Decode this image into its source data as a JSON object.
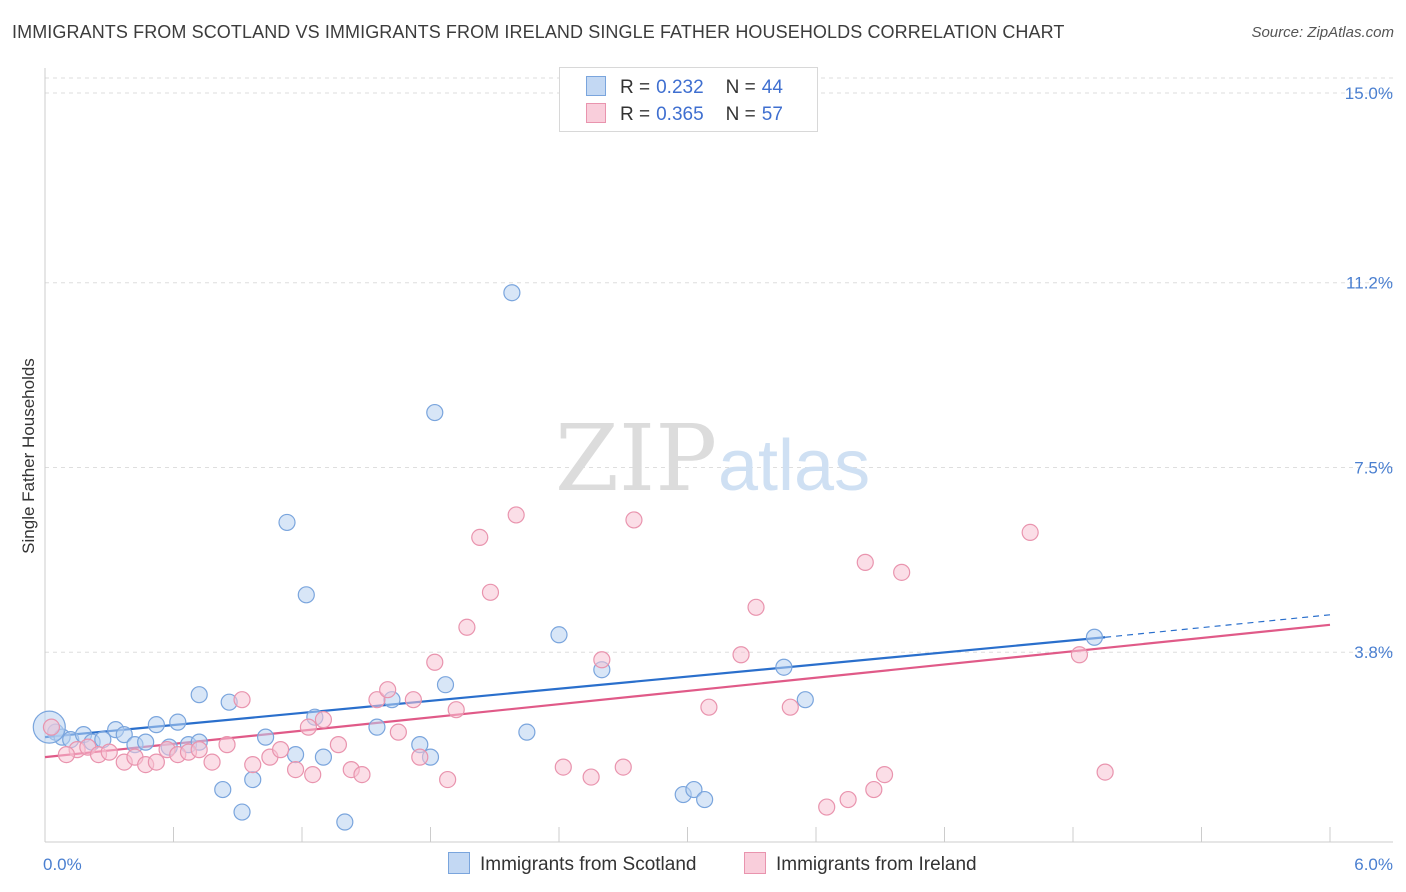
{
  "header": {
    "title": "IMMIGRANTS FROM SCOTLAND VS IMMIGRANTS FROM IRELAND SINGLE FATHER HOUSEHOLDS CORRELATION CHART",
    "source": "Source: ZipAtlas.com"
  },
  "watermark": {
    "zip": "ZIP",
    "atlas": "atlas"
  },
  "legend": {
    "rows": [
      {
        "r_label": "R =",
        "r_value": "0.232",
        "n_label": "N =",
        "n_value": "44",
        "color": "#b8d1f0"
      },
      {
        "r_label": "R =",
        "r_value": "0.365",
        "n_label": "N =",
        "n_value": "57",
        "color": "#f7c3d3"
      }
    ]
  },
  "bottom_legend": {
    "scotland": "Immigrants from Scotland",
    "ireland": "Immigrants from Ireland"
  },
  "chart_data": {
    "type": "scatter",
    "title": "IMMIGRANTS FROM SCOTLAND VS IMMIGRANTS FROM IRELAND SINGLE FATHER HOUSEHOLDS CORRELATION CHART",
    "ylabel": "Single Father Households",
    "xlabel": "",
    "xlim": [
      0,
      6
    ],
    "ylim": [
      0,
      15.3
    ],
    "y_ticks": [
      {
        "value": 3.8,
        "label": "3.8%"
      },
      {
        "value": 7.5,
        "label": "7.5%"
      },
      {
        "value": 11.2,
        "label": "11.2%"
      },
      {
        "value": 15.0,
        "label": "15.0%"
      }
    ],
    "x_ticks": [
      {
        "value": 0,
        "label": "0.0%"
      },
      {
        "value": 6,
        "label": "6.0%"
      }
    ],
    "grid": true,
    "legend_position": "top-center",
    "colors": {
      "scotland_fill": "#b8d1f0",
      "scotland_stroke": "#7aa5dd",
      "scotland_line": "#2a6fcc",
      "ireland_fill": "#f7c3d3",
      "ireland_stroke": "#e994ae",
      "ireland_line": "#e05a88"
    },
    "series": [
      {
        "name": "Immigrants from Scotland",
        "trend": {
          "x0": 0.0,
          "y0": 2.1,
          "x1": 4.95,
          "y1": 4.1,
          "dash_to_x": 6.0,
          "dash_to_y": 4.55
        },
        "points": [
          [
            0.05,
            2.2
          ],
          [
            0.08,
            2.1
          ],
          [
            0.12,
            2.05
          ],
          [
            0.18,
            2.15
          ],
          [
            0.22,
            2.0
          ],
          [
            0.27,
            2.05
          ],
          [
            0.33,
            2.25
          ],
          [
            0.37,
            2.15
          ],
          [
            0.42,
            1.95
          ],
          [
            0.47,
            2.0
          ],
          [
            0.52,
            2.35
          ],
          [
            0.58,
            1.9
          ],
          [
            0.62,
            2.4
          ],
          [
            0.67,
            1.95
          ],
          [
            0.72,
            2.0
          ],
          [
            0.72,
            2.95
          ],
          [
            0.83,
            1.05
          ],
          [
            0.86,
            2.8
          ],
          [
            0.92,
            0.6
          ],
          [
            0.97,
            1.25
          ],
          [
            1.03,
            2.1
          ],
          [
            1.13,
            6.4
          ],
          [
            1.17,
            1.75
          ],
          [
            1.22,
            4.95
          ],
          [
            1.26,
            2.5
          ],
          [
            1.3,
            1.7
          ],
          [
            1.4,
            0.4
          ],
          [
            1.55,
            2.3
          ],
          [
            1.62,
            2.85
          ],
          [
            1.75,
            1.95
          ],
          [
            1.8,
            1.7
          ],
          [
            1.82,
            8.6
          ],
          [
            1.87,
            3.15
          ],
          [
            2.18,
            11.0
          ],
          [
            2.25,
            2.2
          ],
          [
            2.4,
            4.15
          ],
          [
            2.6,
            3.45
          ],
          [
            2.98,
            0.95
          ],
          [
            3.03,
            1.05
          ],
          [
            3.08,
            0.85
          ],
          [
            3.45,
            3.5
          ],
          [
            3.55,
            2.85
          ],
          [
            4.9,
            4.1
          ],
          [
            0.02,
            2.3
          ]
        ]
      },
      {
        "name": "Immigrants from Ireland",
        "trend": {
          "x0": 0.0,
          "y0": 1.7,
          "x1": 6.0,
          "y1": 4.35
        },
        "points": [
          [
            0.03,
            2.3
          ],
          [
            0.15,
            1.85
          ],
          [
            0.2,
            1.9
          ],
          [
            0.25,
            1.75
          ],
          [
            0.3,
            1.8
          ],
          [
            0.37,
            1.6
          ],
          [
            0.42,
            1.7
          ],
          [
            0.47,
            1.55
          ],
          [
            0.52,
            1.6
          ],
          [
            0.57,
            1.85
          ],
          [
            0.62,
            1.75
          ],
          [
            0.67,
            1.8
          ],
          [
            0.72,
            1.85
          ],
          [
            0.78,
            1.6
          ],
          [
            0.85,
            1.95
          ],
          [
            0.92,
            2.85
          ],
          [
            0.97,
            1.55
          ],
          [
            1.05,
            1.7
          ],
          [
            1.1,
            1.85
          ],
          [
            1.17,
            1.45
          ],
          [
            1.23,
            2.3
          ],
          [
            1.25,
            1.35
          ],
          [
            1.3,
            2.45
          ],
          [
            1.37,
            1.95
          ],
          [
            1.43,
            1.45
          ],
          [
            1.48,
            1.35
          ],
          [
            1.55,
            2.85
          ],
          [
            1.6,
            3.05
          ],
          [
            1.65,
            2.2
          ],
          [
            1.72,
            2.85
          ],
          [
            1.75,
            1.7
          ],
          [
            1.82,
            3.6
          ],
          [
            1.88,
            1.25
          ],
          [
            1.92,
            2.65
          ],
          [
            1.97,
            4.3
          ],
          [
            2.03,
            6.1
          ],
          [
            2.08,
            5.0
          ],
          [
            2.2,
            6.55
          ],
          [
            2.42,
            1.5
          ],
          [
            2.55,
            1.3
          ],
          [
            2.6,
            3.65
          ],
          [
            2.7,
            1.5
          ],
          [
            2.75,
            6.45
          ],
          [
            3.1,
            2.7
          ],
          [
            3.25,
            3.75
          ],
          [
            3.32,
            4.7
          ],
          [
            3.48,
            2.7
          ],
          [
            3.65,
            0.7
          ],
          [
            3.75,
            0.85
          ],
          [
            3.83,
            5.6
          ],
          [
            3.87,
            1.05
          ],
          [
            3.92,
            1.35
          ],
          [
            4.0,
            5.4
          ],
          [
            4.6,
            6.2
          ],
          [
            4.83,
            3.75
          ],
          [
            4.95,
            1.4
          ],
          [
            0.1,
            1.75
          ]
        ]
      }
    ]
  }
}
